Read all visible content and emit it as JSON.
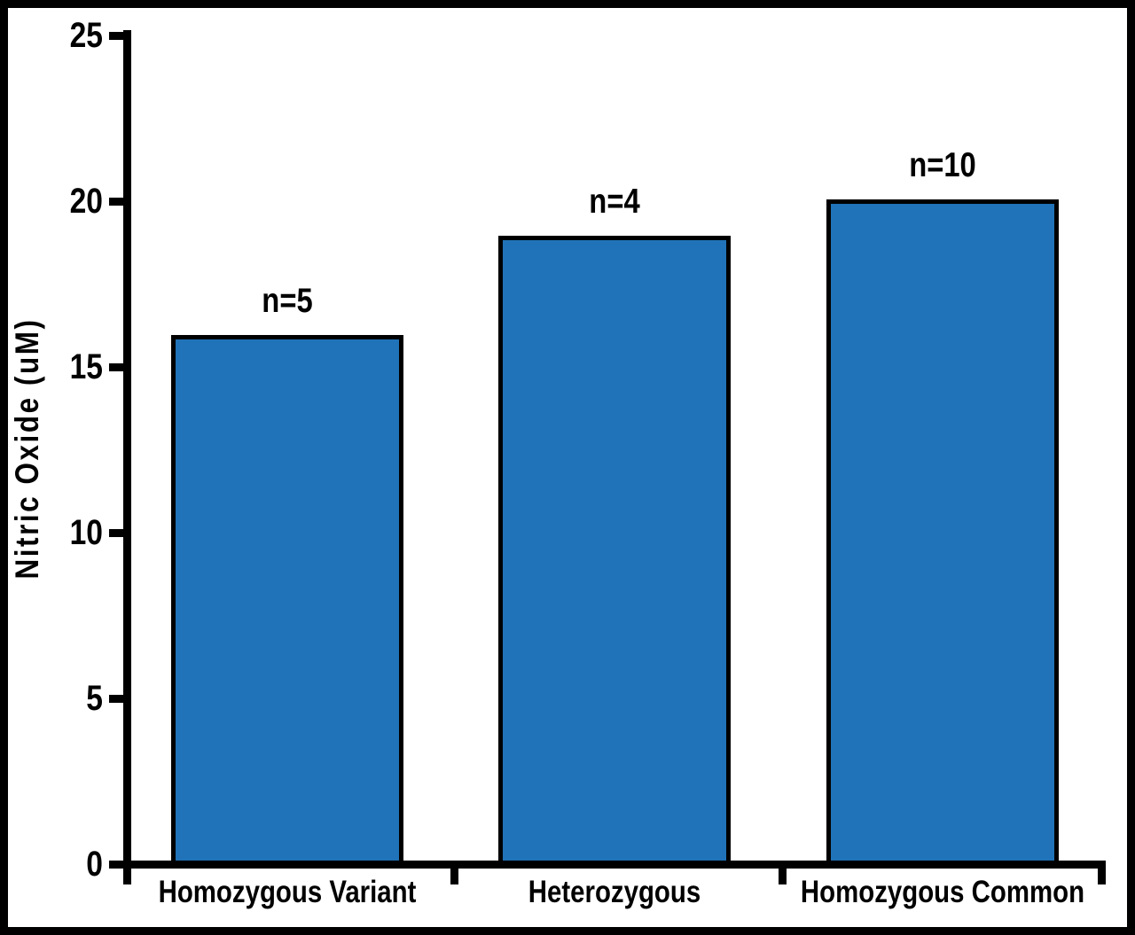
{
  "figure": {
    "background": "#ffffff",
    "frame_color": "#000000"
  },
  "chart_data": {
    "type": "bar",
    "title": "",
    "xlabel": "",
    "ylabel": "Nitric Oxide (uM)",
    "categories": [
      "Homozygous Variant",
      "Heterozygous",
      "Homozygous Common"
    ],
    "values": [
      15.9,
      18.9,
      20.0
    ],
    "bar_annotations": [
      "n=5",
      "n=4",
      "n=10"
    ],
    "ylim": [
      0,
      25
    ],
    "yticks": [
      0,
      5,
      10,
      15,
      20,
      25
    ],
    "grid": false,
    "legend_position": null,
    "bar_color": "#2073b8",
    "bar_border_color": "#000000",
    "axis_color": "#000000",
    "text_color": "#000000"
  }
}
